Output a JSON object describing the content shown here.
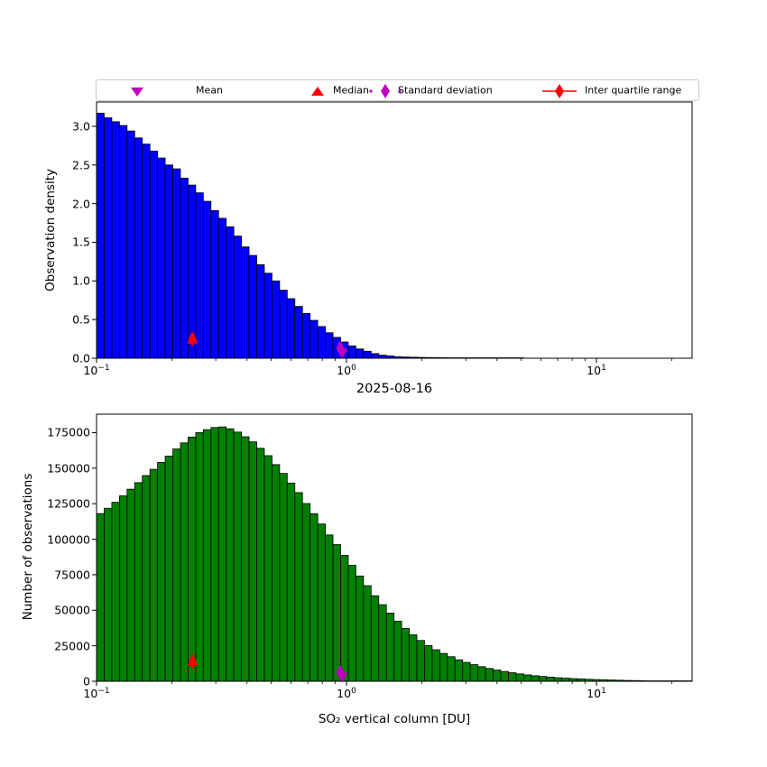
{
  "title": "2025-08-16",
  "legend": {
    "items": [
      {
        "label": "Mean",
        "marker": "triangle-down",
        "color": "#BF00BF"
      },
      {
        "label": "Median",
        "marker": "triangle-up",
        "color": "#FF0000"
      },
      {
        "label": "Standard deviation",
        "marker": "thin-diamond-dotted",
        "color": "#BF00BF"
      },
      {
        "label": "Inter quartile range",
        "marker": "thin-diamond-solid-line",
        "color": "#FF0000"
      }
    ]
  },
  "x_axis": {
    "scale": "log",
    "range": [
      0.1,
      24
    ],
    "major_ticks": [
      {
        "value": 0.1,
        "base": "10",
        "exp": "−1"
      },
      {
        "value": 1,
        "base": "10",
        "exp": "0"
      },
      {
        "value": 10,
        "base": "10",
        "exp": "1"
      }
    ],
    "minor_ticks": [
      0.2,
      0.3,
      0.4,
      0.5,
      0.6,
      0.7,
      0.8,
      0.9,
      2,
      3,
      4,
      5,
      6,
      7,
      8,
      9,
      20
    ]
  },
  "chart_data": [
    {
      "type": "bar",
      "name": "observation-density-histogram",
      "ylabel": "Observation density",
      "color": "#0000FF",
      "x_scale": "log",
      "x_range": [
        0.1,
        24
      ],
      "n_bins": 78,
      "ylim": [
        0,
        3.315
      ],
      "yticks": [
        {
          "value": 0.0,
          "label": "0.0"
        },
        {
          "value": 0.5,
          "label": "0.5"
        },
        {
          "value": 1.0,
          "label": "1.0"
        },
        {
          "value": 1.5,
          "label": "1.5"
        },
        {
          "value": 2.0,
          "label": "2.0"
        },
        {
          "value": 2.5,
          "label": "2.5"
        },
        {
          "value": 3.0,
          "label": "3.0"
        }
      ],
      "bin_heights": [
        3.17,
        3.11,
        3.06,
        3.01,
        2.94,
        2.85,
        2.77,
        2.68,
        2.59,
        2.5,
        2.45,
        2.33,
        2.24,
        2.14,
        2.03,
        1.91,
        1.81,
        1.7,
        1.58,
        1.44,
        1.33,
        1.21,
        1.1,
        1.0,
        0.88,
        0.77,
        0.67,
        0.58,
        0.49,
        0.41,
        0.33,
        0.27,
        0.21,
        0.16,
        0.12,
        0.09,
        0.06,
        0.04,
        0.03,
        0.02,
        0.016,
        0.013,
        0.011,
        0.009,
        0.008,
        0.007,
        0.006,
        0.005,
        0.004,
        0.004,
        0.003,
        0.003,
        0.002,
        0.002,
        0.001,
        0.001,
        0,
        0,
        0,
        0,
        0,
        0,
        0,
        0,
        0,
        0,
        0,
        0,
        0,
        0,
        0,
        0,
        0,
        0,
        0,
        0,
        0,
        0
      ],
      "markers": {
        "mean": {
          "x": 0.96,
          "y": 0.065
        },
        "median": {
          "x": 0.242,
          "y": 0.25
        },
        "std": {
          "x": 0.943,
          "y": 0.13
        },
        "iqr": {
          "x": 0.242,
          "y": 0.25
        }
      }
    },
    {
      "type": "bar",
      "name": "observation-count-histogram",
      "ylabel": "Number of observations",
      "xlabel": "SO₂ vertical column [DU]",
      "color": "#008000",
      "x_scale": "log",
      "x_range": [
        0.1,
        24
      ],
      "n_bins": 78,
      "ylim": [
        0,
        188000
      ],
      "yticks": [
        {
          "value": 0,
          "label": "0"
        },
        {
          "value": 25000,
          "label": "25000"
        },
        {
          "value": 50000,
          "label": "50000"
        },
        {
          "value": 75000,
          "label": "75000"
        },
        {
          "value": 100000,
          "label": "100000"
        },
        {
          "value": 125000,
          "label": "125000"
        },
        {
          "value": 150000,
          "label": "150000"
        },
        {
          "value": 175000,
          "label": "175000"
        }
      ],
      "bin_heights": [
        118000,
        121800,
        126000,
        130500,
        135200,
        139800,
        144800,
        149200,
        154100,
        158500,
        163500,
        167800,
        171900,
        175000,
        177100,
        178600,
        179000,
        177700,
        175400,
        172100,
        168500,
        164000,
        158800,
        152500,
        146300,
        139500,
        132800,
        125100,
        118000,
        110700,
        103000,
        96200,
        88600,
        81700,
        74100,
        67300,
        60200,
        53900,
        48000,
        42300,
        37200,
        32700,
        28700,
        25100,
        22200,
        19600,
        17300,
        15100,
        13300,
        11700,
        10300,
        9000,
        7900,
        6900,
        6000,
        5200,
        4500,
        3900,
        3400,
        2900,
        2500,
        2200,
        1900,
        1700,
        1400,
        1200,
        1100,
        900,
        750,
        600,
        500,
        400,
        320,
        270,
        220,
        180,
        130,
        100
      ],
      "markers": {
        "mean": {
          "x": 0.96,
          "y": 2900
        },
        "median": {
          "x": 0.242,
          "y": 14000
        },
        "std": {
          "x": 0.943,
          "y": 6400
        },
        "iqr": {
          "x": 0.242,
          "y": 14000
        }
      }
    }
  ]
}
